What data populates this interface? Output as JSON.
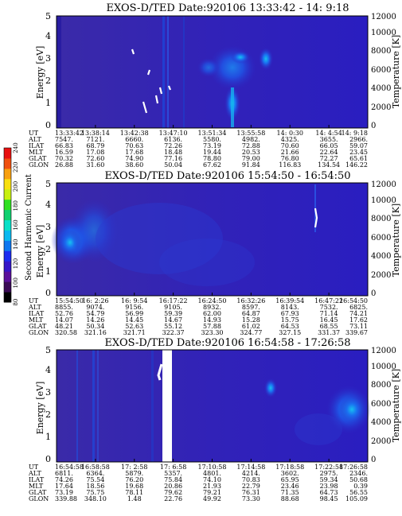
{
  "chart_data": [
    {
      "type": "heatmap",
      "title": "EXOS-D/TED   Date:920106  13:33:42 - 14: 9:18",
      "ylabel": "Energy [eV]",
      "ylabel_right": "Temperature [K]",
      "ylim": [
        0,
        5
      ],
      "y_ticks": [
        "0",
        "1",
        "2",
        "3",
        "4",
        "5"
      ],
      "y2lim": [
        0,
        12000
      ],
      "y2_ticks": [
        "0",
        "2000",
        "4000",
        "6000",
        "8000",
        "10000",
        "12000"
      ],
      "ephemeris": [
        {
          "name": "UT",
          "values": [
            "13:33:42",
            "13:38:14",
            "13:42:38",
            "13:47:10",
            "13:51:34",
            "13:55:58",
            "14: 0:30",
            "14: 4:54",
            "14: 9:18"
          ]
        },
        {
          "name": "ALT",
          "values": [
            "7547.",
            "7121.",
            "6660.",
            "6136.",
            "5580.",
            "4982.",
            "4325.",
            "3655.",
            "2966."
          ]
        },
        {
          "name": "ILAT",
          "values": [
            "66.83",
            "68.79",
            "70.63",
            "72.26",
            "73.19",
            "72.88",
            "70.60",
            "66.05",
            "59.07"
          ]
        },
        {
          "name": "MLT",
          "values": [
            "16.59",
            "17.08",
            "17.68",
            "18.48",
            "19.44",
            "20.53",
            "21.66",
            "22.64",
            "23.45"
          ]
        },
        {
          "name": "GLAT",
          "values": [
            "70.32",
            "72.60",
            "74.90",
            "77.16",
            "78.80",
            "79.00",
            "76.80",
            "72.27",
            "65.61"
          ]
        },
        {
          "name": "GLON",
          "values": [
            "26.88",
            "31.60",
            "38.60",
            "50.04",
            "67.62",
            "91.84",
            "116.83",
            "134.54",
            "146.22"
          ]
        }
      ]
    },
    {
      "type": "heatmap",
      "title": "EXOS-D/TED   Date:920106  15:54:50 - 16:54:50",
      "ylabel": "Energy [eV]",
      "ylabel_right": "Temperature [K]",
      "ylim": [
        0,
        5
      ],
      "y_ticks": [
        "0",
        "1",
        "2",
        "3",
        "4",
        "5"
      ],
      "y2lim": [
        0,
        12000
      ],
      "y2_ticks": [
        "0",
        "2000",
        "4000",
        "6000",
        "8000",
        "10000",
        "12000"
      ],
      "ephemeris": [
        {
          "name": "UT",
          "values": [
            "15:54:50",
            "16: 2:26",
            "16: 9:54",
            "16:17:22",
            "16:24:50",
            "16:32:26",
            "16:39:54",
            "16:47:22",
            "16:54:50"
          ]
        },
        {
          "name": "ALT",
          "values": [
            "8855.",
            "9074.",
            "9156.",
            "9105.",
            "8932.",
            "8597.",
            "8143.",
            "7532.",
            "6825."
          ]
        },
        {
          "name": "ILAT",
          "values": [
            "52.76",
            "54.79",
            "56.99",
            "59.39",
            "62.00",
            "64.87",
            "67.93",
            "71.14",
            "74.21"
          ]
        },
        {
          "name": "MLT",
          "values": [
            "14.07",
            "14.26",
            "14.45",
            "14.67",
            "14.93",
            "15.28",
            "15.75",
            "16.45",
            "17.62"
          ]
        },
        {
          "name": "GLAT",
          "values": [
            "48.21",
            "50.34",
            "52.63",
            "55.12",
            "57.88",
            "61.02",
            "64.53",
            "68.55",
            "73.11"
          ]
        },
        {
          "name": "GLON",
          "values": [
            "320.58",
            "321.16",
            "321.71",
            "322.37",
            "323.30",
            "324.77",
            "327.15",
            "331.37",
            "339.67"
          ]
        }
      ]
    },
    {
      "type": "heatmap",
      "title": "EXOS-D/TED   Date:920106  16:54:58 - 17:26:58",
      "ylabel": "Energy [eV]",
      "ylabel_right": "Temperature [K]",
      "ylim": [
        0,
        5
      ],
      "y_ticks": [
        "0",
        "1",
        "2",
        "3",
        "4",
        "5"
      ],
      "y2lim": [
        0,
        12000
      ],
      "y2_ticks": [
        "0",
        "2000",
        "4000",
        "6000",
        "8000",
        "10000",
        "12000"
      ],
      "ephemeris": [
        {
          "name": "UT",
          "values": [
            "16:54:58",
            "16:58:58",
            "17: 2:58",
            "17: 6:58",
            "17:10:58",
            "17:14:58",
            "17:18:58",
            "17:22:58",
            "17:26:58"
          ]
        },
        {
          "name": "ALT",
          "values": [
            "6811.",
            "6364.",
            "5879.",
            "5357.",
            "4801.",
            "4214.",
            "3602.",
            "2975.",
            "2346."
          ]
        },
        {
          "name": "ILAT",
          "values": [
            "74.26",
            "75.54",
            "76.20",
            "75.84",
            "74.10",
            "70.83",
            "65.95",
            "59.34",
            "50.68"
          ]
        },
        {
          "name": "MLT",
          "values": [
            "17.64",
            "18.56",
            "19.68",
            "20.86",
            "21.93",
            "22.79",
            "23.46",
            "23.98",
            "0.39"
          ]
        },
        {
          "name": "GLAT",
          "values": [
            "73.19",
            "75.75",
            "78.11",
            "79.62",
            "79.21",
            "76.31",
            "71.35",
            "64.73",
            "56.55"
          ]
        },
        {
          "name": "GLON",
          "values": [
            "339.88",
            "348.10",
            "1.48",
            "22.76",
            "49.92",
            "73.30",
            "88.68",
            "98.45",
            "105.09"
          ]
        }
      ]
    }
  ],
  "colorbar": {
    "label": "Second Harmonic Current",
    "ticks": [
      "80",
      "100",
      "120",
      "140",
      "160",
      "180",
      "200",
      "220",
      "240"
    ],
    "colors": [
      "#000000",
      "#3a0a55",
      "#5a109a",
      "#3516c8",
      "#1c2cf0",
      "#0e78f0",
      "#0ab9f0",
      "#08e0c8",
      "#10d070",
      "#30e020",
      "#c8f010",
      "#f8e010",
      "#f8a010",
      "#f05010",
      "#e81010"
    ]
  }
}
